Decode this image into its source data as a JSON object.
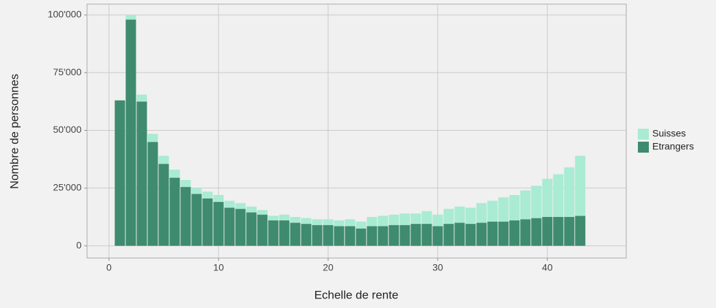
{
  "chart_data": {
    "type": "bar",
    "stacked": true,
    "x_label": "Echelle de rente",
    "y_label": "Nombre de personnes",
    "x": [
      1,
      2,
      3,
      4,
      5,
      6,
      7,
      8,
      9,
      10,
      11,
      12,
      13,
      14,
      15,
      16,
      17,
      18,
      19,
      20,
      21,
      22,
      23,
      24,
      25,
      26,
      27,
      28,
      29,
      30,
      31,
      32,
      33,
      34,
      35,
      36,
      37,
      38,
      39,
      40,
      41,
      42,
      43
    ],
    "series": [
      {
        "name": "Etrangers",
        "color": "#3f8b6f",
        "values": [
          63000,
          98000,
          62500,
          45000,
          35500,
          29500,
          25500,
          22500,
          20500,
          19000,
          16500,
          16000,
          14500,
          13500,
          11000,
          11000,
          10000,
          9500,
          9000,
          9000,
          8500,
          8500,
          7500,
          8500,
          8500,
          9000,
          9000,
          9500,
          9500,
          8500,
          9500,
          10000,
          9500,
          10000,
          10500,
          10500,
          11000,
          11500,
          12000,
          12500,
          12500,
          12500,
          13000
        ]
      },
      {
        "name": "Suisses",
        "color": "#a9ebd3",
        "values": [
          0,
          2000,
          3000,
          3500,
          3500,
          3500,
          3000,
          2500,
          3000,
          3000,
          3000,
          2500,
          2500,
          2000,
          2000,
          2500,
          2500,
          2500,
          2500,
          2500,
          2500,
          3000,
          3000,
          4000,
          4500,
          4500,
          5000,
          4500,
          5500,
          5000,
          6500,
          7000,
          7000,
          8500,
          9000,
          10500,
          11000,
          12500,
          14000,
          16500,
          18500,
          21500,
          26000
        ]
      }
    ],
    "xlim": [
      -2,
      47.2
    ],
    "xticks": [
      0,
      10,
      20,
      30,
      40
    ],
    "ylim": [
      -5300,
      104700
    ],
    "yticks": [
      0,
      {
        "value": 25000,
        "label": "25'000"
      },
      {
        "value": 50000,
        "label": "50'000"
      },
      {
        "value": 75000,
        "label": "75'000"
      },
      {
        "value": 100000,
        "label": "100'000"
      }
    ],
    "grid": true,
    "legend": "right"
  }
}
